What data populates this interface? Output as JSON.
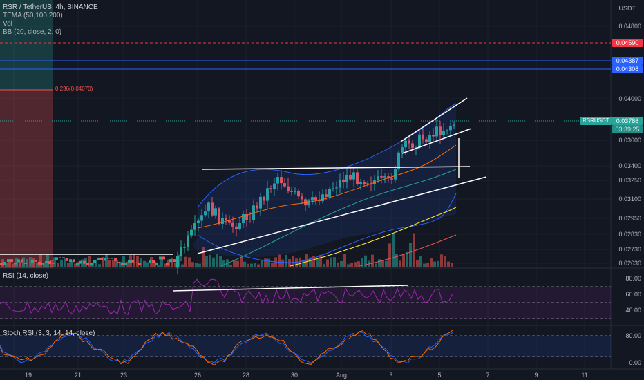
{
  "header": {
    "symbol_title": "RSR / TetherUS, 4h, BINANCE",
    "indicators": [
      "TEMA (50,100,200)",
      "Vol",
      "BB (20, close, 2, 0)"
    ],
    "currency": "USDT"
  },
  "price_axis": {
    "ticks": [
      "0.04800",
      "0.04000",
      "0.03600",
      "0.03400",
      "0.03250",
      "0.03100",
      "0.02950",
      "0.02830",
      "0.02730",
      "0.02630"
    ]
  },
  "price_tags": [
    {
      "label": "0.04590",
      "color": "#f23645"
    },
    {
      "label": "0.04387",
      "color": "#2962ff"
    },
    {
      "label": "0.04308",
      "color": "#2962ff"
    }
  ],
  "current": {
    "symbol": "RSRUSDT",
    "price": "0.03786",
    "countdown": "03:39:25",
    "color": "#26a69a"
  },
  "fib_label": "0.236(0.04070)",
  "rsi": {
    "title": "RSI (14, close)",
    "ticks": [
      "80.00",
      "60.00",
      "40.00"
    ]
  },
  "stoch": {
    "title": "Stoch RSI (3, 3, 14, 14, close)",
    "ticks": [
      "80.00",
      "0.00"
    ]
  },
  "time_axis": {
    "labels": [
      "19",
      "21",
      "23",
      "26",
      "28",
      "30",
      "Aug",
      "3",
      "5",
      "7",
      "9",
      "11"
    ]
  },
  "colors": {
    "up": "#26a69a",
    "down": "#ef5350",
    "bb": "#2962ff",
    "rsi": "#9c27b0",
    "stoch_k": "#2962ff",
    "stoch_d": "#ff6d00"
  },
  "chart_data": {
    "type": "candlestick",
    "title": "RSR / TetherUS, 4h, BINANCE",
    "y_axis": {
      "scale": "log",
      "unit": "USDT"
    },
    "key_levels": [
      0.0459,
      0.04387,
      0.04308,
      0.0407
    ],
    "last_price": 0.03786,
    "grid": true,
    "legend": "top-left"
  }
}
